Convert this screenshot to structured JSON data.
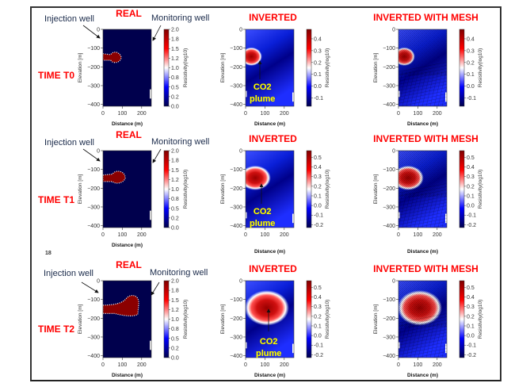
{
  "rows": [
    {
      "time_label": "TIME T0",
      "injection_label": "Injection well",
      "monitoring_label": "Monitoring well",
      "plume_label_1": "CO2",
      "plume_label_2": "plume"
    },
    {
      "time_label": "TIME T1",
      "injection_label": "Injection well",
      "monitoring_label": "Monitoring well",
      "plume_label_1": "CO2",
      "plume_label_2": "plume"
    },
    {
      "time_label": "TIME T2",
      "injection_label": "Injection well",
      "monitoring_label": "Monitoring well",
      "plume_label_1": "CO2",
      "plume_label_2": "plume"
    }
  ],
  "page_number": "18",
  "colors": {
    "title": "#ff0000",
    "plume_text": "#ffff00",
    "real_plume": "#8b0000",
    "background_low": "#00004d"
  },
  "chart_data": [
    {
      "type": "heatmap",
      "title": "REAL",
      "row": 0,
      "xlabel": "Distance (m)",
      "ylabel": "Elevation [m]",
      "xlim": [
        0,
        250
      ],
      "ylim": [
        -410,
        0
      ],
      "xticks": [
        "0",
        "100",
        "200"
      ],
      "yticks": [
        "0",
        "−100",
        "−200",
        "−300",
        "−400"
      ],
      "colorbar_label": "Resistivity(log10)",
      "colorbar_range": [
        0,
        2.0
      ],
      "colorbar_ticks": [
        "2.0",
        "1.8",
        "1.5",
        "1.2",
        "1.0",
        "0.8",
        "0.5",
        "0.2",
        "0.0"
      ]
    },
    {
      "type": "heatmap",
      "title": "INVERTED",
      "row": 0,
      "xlabel": "Distance (m)",
      "ylabel": "Elevation [m]",
      "xlim": [
        0,
        250
      ],
      "ylim": [
        -410,
        0
      ],
      "xticks": [
        "0",
        "100",
        "200"
      ],
      "yticks": [
        "0",
        "−100",
        "−200",
        "−300",
        "−400"
      ],
      "colorbar_label": "Resistivity(log10)",
      "colorbar_range": [
        -0.17,
        0.48
      ],
      "colorbar_ticks": [
        "0.4",
        "0.3",
        "0.2",
        "0.1",
        "0.0",
        "-0.1"
      ]
    },
    {
      "type": "heatmap",
      "title": "INVERTED WITH MESH",
      "row": 0,
      "xlabel": "Distance (m)",
      "ylabel": "Elevation [m]",
      "xlim": [
        0,
        250
      ],
      "ylim": [
        -410,
        0
      ],
      "xticks": [
        "0",
        "100",
        "200"
      ],
      "yticks": [
        "0",
        "−100",
        "−200",
        "−300",
        "−400"
      ],
      "colorbar_label": "Resistivity(log10)",
      "colorbar_range": [
        -0.17,
        0.48
      ],
      "colorbar_ticks": [
        "0.4",
        "0.3",
        "0.2",
        "0.1",
        "0.0",
        "-0.1"
      ]
    },
    {
      "type": "heatmap",
      "title": "REAL",
      "row": 1,
      "xlabel": "Distance (m)",
      "ylabel": "Elevation [m]",
      "xlim": [
        0,
        250
      ],
      "ylim": [
        -410,
        0
      ],
      "xticks": [
        "0",
        "100",
        "200"
      ],
      "yticks": [
        "0",
        "−100",
        "−200",
        "−300",
        "−400"
      ],
      "colorbar_label": "Resistivity(log10)",
      "colorbar_range": [
        0,
        2.0
      ],
      "colorbar_ticks": [
        "2.0",
        "1.8",
        "1.5",
        "1.2",
        "1.0",
        "0.8",
        "0.5",
        "0.2",
        "0.0"
      ]
    },
    {
      "type": "heatmap",
      "title": "INVERTED",
      "row": 1,
      "xlabel": "Distance (m)",
      "ylabel": "Elevation [m]",
      "xlim": [
        0,
        250
      ],
      "ylim": [
        -410,
        0
      ],
      "xticks": [
        "0",
        "100",
        "200"
      ],
      "yticks": [
        "0",
        "−100",
        "−200",
        "−300",
        "−400"
      ],
      "colorbar_label": "Resistivity(log10)",
      "colorbar_range": [
        -0.23,
        0.57
      ],
      "colorbar_ticks": [
        "0.5",
        "0.4",
        "0.3",
        "0.2",
        "0.1",
        "0.0",
        "-0.1",
        "-0.2"
      ]
    },
    {
      "type": "heatmap",
      "title": "INVERTED WITH MESH",
      "row": 1,
      "xlabel": "Distance (m)",
      "ylabel": "Elevation [m]",
      "xlim": [
        0,
        250
      ],
      "ylim": [
        -410,
        0
      ],
      "xticks": [
        "0",
        "100",
        "200"
      ],
      "yticks": [
        "0",
        "−100",
        "−200",
        "−300",
        "−400"
      ],
      "colorbar_label": "Resistivity(log10)",
      "colorbar_range": [
        -0.23,
        0.57
      ],
      "colorbar_ticks": [
        "0.5",
        "0.4",
        "0.3",
        "0.2",
        "0.1",
        "0.0",
        "-0.1",
        "-0.2"
      ]
    },
    {
      "type": "heatmap",
      "title": "REAL",
      "row": 2,
      "xlabel": "Distance (m)",
      "ylabel": "Elevation [m]",
      "xlim": [
        0,
        250
      ],
      "ylim": [
        -410,
        0
      ],
      "xticks": [
        "0",
        "100",
        "200"
      ],
      "yticks": [
        "0",
        "−100",
        "−200",
        "−300",
        "−400"
      ],
      "colorbar_label": "Resistivity(log10)",
      "colorbar_range": [
        0,
        2.0
      ],
      "colorbar_ticks": [
        "2.0",
        "1.8",
        "1.5",
        "1.2",
        "1.0",
        "0.8",
        "0.5",
        "0.2",
        "0.0"
      ]
    },
    {
      "type": "heatmap",
      "title": "INVERTED",
      "row": 2,
      "xlabel": "Distance (m)",
      "ylabel": "Elevation [m]",
      "xlim": [
        0,
        250
      ],
      "ylim": [
        -410,
        0
      ],
      "xticks": [
        "0",
        "100",
        "200"
      ],
      "yticks": [
        "0",
        "−100",
        "−200",
        "−300",
        "−400"
      ],
      "colorbar_label": "Resistivity(log10)",
      "colorbar_range": [
        -0.23,
        0.57
      ],
      "colorbar_ticks": [
        "0.5",
        "0.4",
        "0.3",
        "0.2",
        "0.1",
        "0.0",
        "-0.1",
        "-0.2"
      ]
    },
    {
      "type": "heatmap",
      "title": "INVERTED WITH MESH",
      "row": 2,
      "xlabel": "Distance (m)",
      "ylabel": "Elevation [m]",
      "xlim": [
        0,
        250
      ],
      "ylim": [
        -410,
        0
      ],
      "xticks": [
        "0",
        "100",
        "200"
      ],
      "yticks": [
        "0",
        "−100",
        "−200",
        "−300",
        "−400"
      ],
      "colorbar_label": "Resistivity(log10)",
      "colorbar_range": [
        -0.23,
        0.57
      ],
      "colorbar_ticks": [
        "0.5",
        "0.4",
        "0.3",
        "0.2",
        "0.1",
        "0.0",
        "-0.1",
        "-0.2"
      ]
    }
  ]
}
